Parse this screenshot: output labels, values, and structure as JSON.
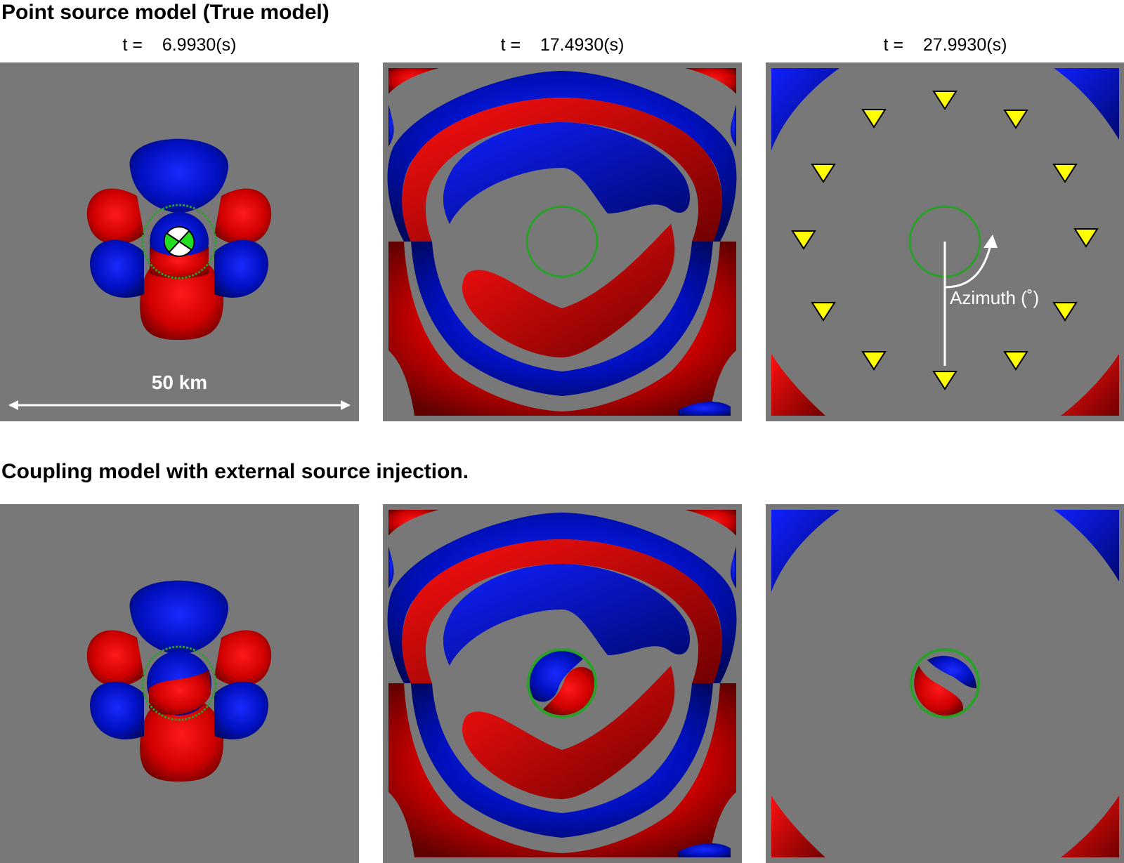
{
  "titles": {
    "top": "Point source model (True model)",
    "bottom": "Coupling model with external source injection."
  },
  "times": [
    {
      "prefix": "t =",
      "value": "6.9930(s)"
    },
    {
      "prefix": "t =",
      "value": "17.4930(s)"
    },
    {
      "prefix": "t =",
      "value": "27.9930(s)"
    }
  ],
  "annotations": {
    "scale_bar": "50 km",
    "azimuth": "Azimuth (˚)"
  },
  "colors": {
    "background": "#787878",
    "positive": "#e00000",
    "negative": "#0010d0",
    "station": "#ffff00",
    "boundary": "#2aa02a"
  }
}
